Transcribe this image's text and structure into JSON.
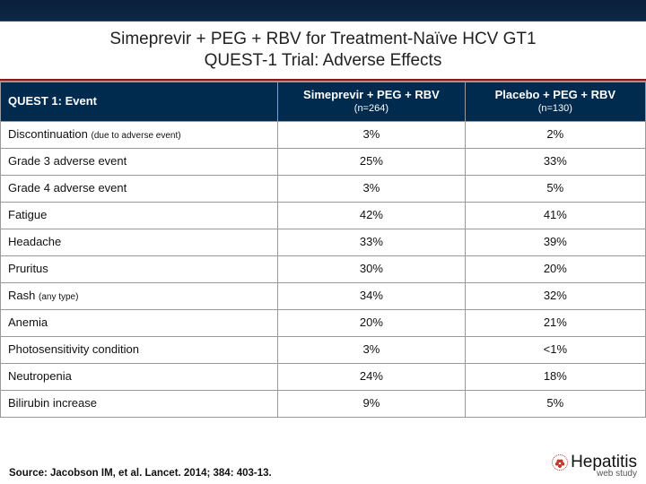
{
  "colors": {
    "header_gradient_top": "#0a1f3a",
    "header_gradient_bottom": "#0d2847",
    "table_header_bg": "#002a4e",
    "table_header_fg": "#ffffff",
    "border": "#999999",
    "rule": "#8a1a1a",
    "text": "#111111",
    "logo_dot": "#c0392b"
  },
  "typography": {
    "title_fontsize_pt": 14,
    "table_fontsize_pt": 10,
    "source_fontsize_pt": 9
  },
  "title": {
    "line1": "Simeprevir + PEG + RBV for Treatment-Naïve HCV GT1",
    "line2": "QUEST-1 Trial: Adverse Effects"
  },
  "table": {
    "type": "table",
    "column_widths_pct": [
      43,
      29,
      28
    ],
    "columns": [
      {
        "label": "QUEST 1: Event",
        "sub": ""
      },
      {
        "label": "Simeprevir + PEG + RBV",
        "sub": "(n=264)"
      },
      {
        "label": "Placebo + PEG + RBV",
        "sub": "(n=130)"
      }
    ],
    "rows": [
      {
        "event": "Discontinuation",
        "note": "(due to adverse event)",
        "c1": "3%",
        "c2": "2%"
      },
      {
        "event": "Grade 3 adverse event",
        "note": "",
        "c1": "25%",
        "c2": "33%"
      },
      {
        "event": "Grade 4 adverse event",
        "note": "",
        "c1": "3%",
        "c2": "5%"
      },
      {
        "event": "Fatigue",
        "note": "",
        "c1": "42%",
        "c2": "41%"
      },
      {
        "event": "Headache",
        "note": "",
        "c1": "33%",
        "c2": "39%"
      },
      {
        "event": "Pruritus",
        "note": "",
        "c1": "30%",
        "c2": "20%"
      },
      {
        "event": "Rash",
        "note": "(any type)",
        "c1": "34%",
        "c2": "32%"
      },
      {
        "event": "Anemia",
        "note": "",
        "c1": "20%",
        "c2": "21%"
      },
      {
        "event": "Photosensitivity condition",
        "note": "",
        "c1": "3%",
        "c2": "<1%"
      },
      {
        "event": "Neutropenia",
        "note": "",
        "c1": "24%",
        "c2": "18%"
      },
      {
        "event": "Bilirubin increase",
        "note": "",
        "c1": "9%",
        "c2": "5%"
      }
    ]
  },
  "source": "Source: Jacobson IM, et al.  Lancet. 2014; 384: 403-13.",
  "logo": {
    "word": "Hepatitis",
    "sub": "web study"
  }
}
